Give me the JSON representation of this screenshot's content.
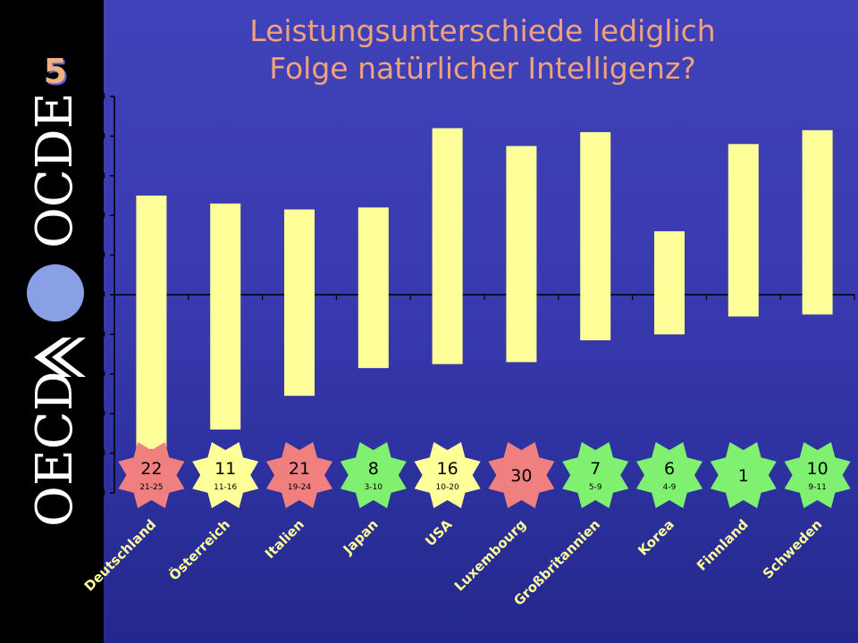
{
  "slide": {
    "title": "Leistungsunterschiede lediglich\nFolge natürlicher Intelligenz?",
    "number": "5",
    "logo_text_left": "OECD",
    "logo_text_right": "OCDE"
  },
  "colors": {
    "bar": "#ffff99",
    "badge_red": "#f08080",
    "badge_yellow": "#ffff99",
    "badge_green": "#80f070",
    "title": "#f0a27a",
    "logo_circle": "#8aa0e6"
  },
  "chart_data": {
    "type": "bar",
    "subtype": "floating-range",
    "categories": [
      "Deutschland",
      "Österreich",
      "Italien",
      "Japan",
      "USA",
      "Luxembourg",
      "Großbritannien",
      "Korea",
      "Finnland",
      "Schweden"
    ],
    "ranges": [
      [
        -78,
        50
      ],
      [
        -68,
        46
      ],
      [
        -51,
        43
      ],
      [
        -37,
        44
      ],
      [
        -35,
        84
      ],
      [
        -34,
        75
      ],
      [
        -23,
        82
      ],
      [
        -20,
        32
      ],
      [
        -11,
        76
      ],
      [
        -10,
        83
      ]
    ],
    "ylim": [
      -100,
      100
    ],
    "yticks": [
      100,
      80,
      60,
      40,
      20,
      0,
      -20,
      -40,
      -60,
      -80,
      -100
    ],
    "xlabel": "",
    "ylabel": "",
    "grid": false,
    "rank_badges": [
      {
        "rank": "22",
        "range": "21-25",
        "color": "red"
      },
      {
        "rank": "11",
        "range": "11-16",
        "color": "yellow"
      },
      {
        "rank": "21",
        "range": "19-24",
        "color": "red"
      },
      {
        "rank": "8",
        "range": "3-10",
        "color": "green"
      },
      {
        "rank": "16",
        "range": "10-20",
        "color": "yellow"
      },
      {
        "rank": "30",
        "range": "",
        "color": "red"
      },
      {
        "rank": "7",
        "range": "5-9",
        "color": "green"
      },
      {
        "rank": "6",
        "range": "4-9",
        "color": "green"
      },
      {
        "rank": "1",
        "range": "",
        "color": "green"
      },
      {
        "rank": "10",
        "range": "9-11",
        "color": "green"
      }
    ]
  }
}
